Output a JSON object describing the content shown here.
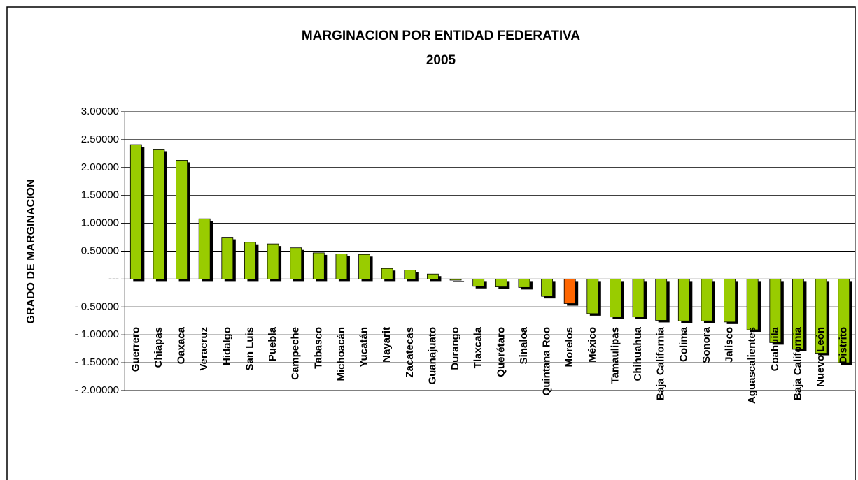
{
  "chart_data": {
    "type": "bar",
    "title": "MARGINACION POR ENTIDAD FEDERATIVA",
    "subtitle": "2005",
    "ylabel": "GRADO DE MARGINACION",
    "categories": [
      "Guerrero",
      "Chiapas",
      "Oaxaca",
      "Veracruz",
      "Hidalgo",
      "San Luis",
      "Puebla",
      "Campeche",
      "Tabasco",
      "Michoacán",
      "Yucatán",
      "Nayarit",
      "Zacatecas",
      "Guanajuato",
      "Durango",
      "Tlaxcala",
      "Querétaro",
      "Sinaloa",
      "Quintana Roo",
      "Morelos",
      "México",
      "Tamaulipas",
      "Chihuahua",
      "Baja California",
      "Colima",
      "Sonora",
      "Jalisco",
      "Aguascalientes",
      "Coahuila",
      "Baja California",
      "Nuevo León",
      "Distrito"
    ],
    "values": [
      2.41,
      2.33,
      2.13,
      1.08,
      0.75,
      0.66,
      0.63,
      0.56,
      0.47,
      0.45,
      0.44,
      0.19,
      0.16,
      0.09,
      -0.02,
      -0.13,
      -0.14,
      -0.15,
      -0.31,
      -0.44,
      -0.62,
      -0.68,
      -0.68,
      -0.74,
      -0.75,
      -0.75,
      -0.77,
      -0.91,
      -1.14,
      -1.26,
      -1.33,
      -1.5
    ],
    "colors": [
      "#99cc00",
      "#99cc00",
      "#99cc00",
      "#99cc00",
      "#99cc00",
      "#99cc00",
      "#99cc00",
      "#99cc00",
      "#99cc00",
      "#99cc00",
      "#99cc00",
      "#99cc00",
      "#99cc00",
      "#99cc00",
      "#99cc00",
      "#99cc00",
      "#99cc00",
      "#99cc00",
      "#99cc00",
      "#ff6600",
      "#99cc00",
      "#99cc00",
      "#99cc00",
      "#99cc00",
      "#99cc00",
      "#99cc00",
      "#99cc00",
      "#99cc00",
      "#99cc00",
      "#99cc00",
      "#99cc00",
      "#99cc00"
    ],
    "shadow_color": "#000000",
    "ylim": [
      -2,
      3
    ],
    "yticks": [
      {
        "value": 3,
        "label": "3.00000"
      },
      {
        "value": 2.5,
        "label": "2.50000"
      },
      {
        "value": 2,
        "label": "2.00000"
      },
      {
        "value": 1.5,
        "label": "1.50000"
      },
      {
        "value": 1,
        "label": "1.00000"
      },
      {
        "value": 0.5,
        "label": "0.50000"
      },
      {
        "value": 0,
        "label": "---"
      },
      {
        "value": -0.5,
        "label": "- 0.50000"
      },
      {
        "value": -1,
        "label": "- 1.00000"
      },
      {
        "value": -1.5,
        "label": "- 1.50000"
      },
      {
        "value": -2,
        "label": "- 2.00000"
      }
    ],
    "grid": true
  }
}
